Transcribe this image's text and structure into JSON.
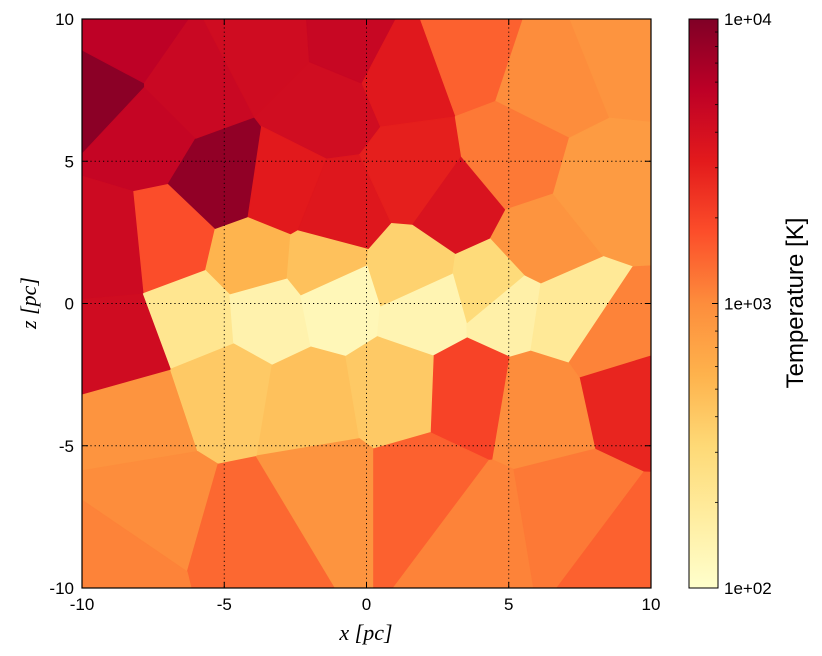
{
  "chart_data": [
    {
      "type": "heatmap",
      "title": "",
      "xlabel": "x [pc]",
      "ylabel": "z [pc]",
      "xlim": [
        -10,
        10
      ],
      "ylim": [
        -10,
        10
      ],
      "xticks": [
        "-10",
        "-5",
        "0",
        "5",
        "10"
      ],
      "yticks": [
        "-10",
        "-5",
        "0",
        "5",
        "10"
      ],
      "grid": true,
      "grid_style": "dotted",
      "colormap": "YlOrRd",
      "colorscale": "log",
      "description": "Voronoi-cell temperature map; hot (~3e3-1e4 K) in upper-left, cool (~1e2-3e2 K) band along z≈0 for x between -7 and 8, warm (~5e2-1e3 K) elsewhere",
      "cells": [
        {
          "x": -9.4,
          "z": 7.5,
          "T": 9000
        },
        {
          "x": -8.5,
          "z": 9.2,
          "T": 5500
        },
        {
          "x": -7.8,
          "z": 6.0,
          "T": 5000
        },
        {
          "x": -5.0,
          "z": 4.3,
          "T": 8500
        },
        {
          "x": -6.2,
          "z": 7.6,
          "T": 4700
        },
        {
          "x": -3.5,
          "z": 9.0,
          "T": 4300
        },
        {
          "x": -1.5,
          "z": 7.0,
          "T": 4200
        },
        {
          "x": -0.6,
          "z": 9.2,
          "T": 4800
        },
        {
          "x": 1.3,
          "z": 8.2,
          "T": 3300
        },
        {
          "x": 3.5,
          "z": 9.0,
          "T": 1500
        },
        {
          "x": 6.5,
          "z": 8.0,
          "T": 1000
        },
        {
          "x": 9.0,
          "z": 9.0,
          "T": 900
        },
        {
          "x": -9.0,
          "z": 2.0,
          "T": 4500
        },
        {
          "x": -8.7,
          "z": -1.5,
          "T": 4300
        },
        {
          "x": -7.0,
          "z": 2.2,
          "T": 1800
        },
        {
          "x": -3.0,
          "z": 4.0,
          "T": 3200
        },
        {
          "x": -1.0,
          "z": 3.2,
          "T": 3400
        },
        {
          "x": 1.8,
          "z": 4.5,
          "T": 3000
        },
        {
          "x": 3.2,
          "z": 3.5,
          "T": 3700
        },
        {
          "x": 5.0,
          "z": 5.0,
          "T": 1200
        },
        {
          "x": 6.0,
          "z": 2.0,
          "T": 900
        },
        {
          "x": 8.5,
          "z": 4.0,
          "T": 800
        },
        {
          "x": -4.0,
          "z": 1.5,
          "T": 550
        },
        {
          "x": -1.5,
          "z": 1.3,
          "T": 450
        },
        {
          "x": 1.5,
          "z": 1.0,
          "T": 350
        },
        {
          "x": 4.5,
          "z": 0.6,
          "T": 300
        },
        {
          "x": -6.0,
          "z": -0.5,
          "T": 220
        },
        {
          "x": -3.5,
          "z": -0.3,
          "T": 150
        },
        {
          "x": -1.0,
          "z": 0.2,
          "T": 130
        },
        {
          "x": 2.0,
          "z": -0.1,
          "T": 140
        },
        {
          "x": 5.0,
          "z": 0.0,
          "T": 160
        },
        {
          "x": 7.0,
          "z": -0.3,
          "T": 200
        },
        {
          "x": 8.8,
          "z": -1.5,
          "T": 1100
        },
        {
          "x": 9.2,
          "z": -2.8,
          "T": 2800
        },
        {
          "x": 3.6,
          "z": -3.1,
          "T": 2000
        },
        {
          "x": 6.0,
          "z": -3.5,
          "T": 1000
        },
        {
          "x": -8.0,
          "z": -4.0,
          "T": 900
        },
        {
          "x": -5.0,
          "z": -3.0,
          "T": 400
        },
        {
          "x": -2.0,
          "z": -3.5,
          "T": 450
        },
        {
          "x": 1.0,
          "z": -3.0,
          "T": 400
        },
        {
          "x": -7.5,
          "z": -7.0,
          "T": 1000
        },
        {
          "x": -4.0,
          "z": -8.0,
          "T": 1400
        },
        {
          "x": -1.5,
          "z": -6.5,
          "T": 900
        },
        {
          "x": 2.0,
          "z": -6.5,
          "T": 1500
        },
        {
          "x": 4.0,
          "z": -8.0,
          "T": 1100
        },
        {
          "x": 7.0,
          "z": -7.5,
          "T": 1200
        },
        {
          "x": 9.0,
          "z": -9.0,
          "T": 1500
        },
        {
          "x": -9.0,
          "z": -9.2,
          "T": 1100
        }
      ]
    },
    {
      "type": "colorbar",
      "label": "Temperature [K]",
      "scale": "log",
      "range": [
        100,
        10000
      ],
      "ticks": [
        "1e+02",
        "1e+03",
        "1e+04"
      ]
    }
  ]
}
